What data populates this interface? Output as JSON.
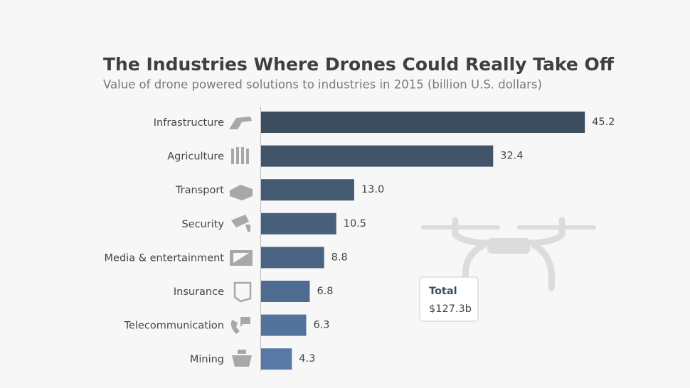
{
  "chart_data": {
    "type": "bar",
    "orientation": "horizontal",
    "title": "The Industries Where Drones Could Really Take Off",
    "subtitle": "Value of drone powered solutions to industries in 2015 (billion U.S. dollars)",
    "categories": [
      "Infrastructure",
      "Agriculture",
      "Transport",
      "Security",
      "Media & entertainment",
      "Insurance",
      "Telecommunication",
      "Mining"
    ],
    "values": [
      45.2,
      32.4,
      13.0,
      10.5,
      8.8,
      6.8,
      6.3,
      4.3
    ],
    "value_labels": [
      "45.2",
      "32.4",
      "13.0",
      "10.5",
      "8.8",
      "6.8",
      "6.3",
      "4.3"
    ],
    "colors": [
      "#3c4d60",
      "#415469",
      "#445a73",
      "#475f7b",
      "#4a6584",
      "#4e6c90",
      "#53739b",
      "#5879a6"
    ],
    "annotation": {
      "label": "Total",
      "text": "$127.3b"
    }
  }
}
